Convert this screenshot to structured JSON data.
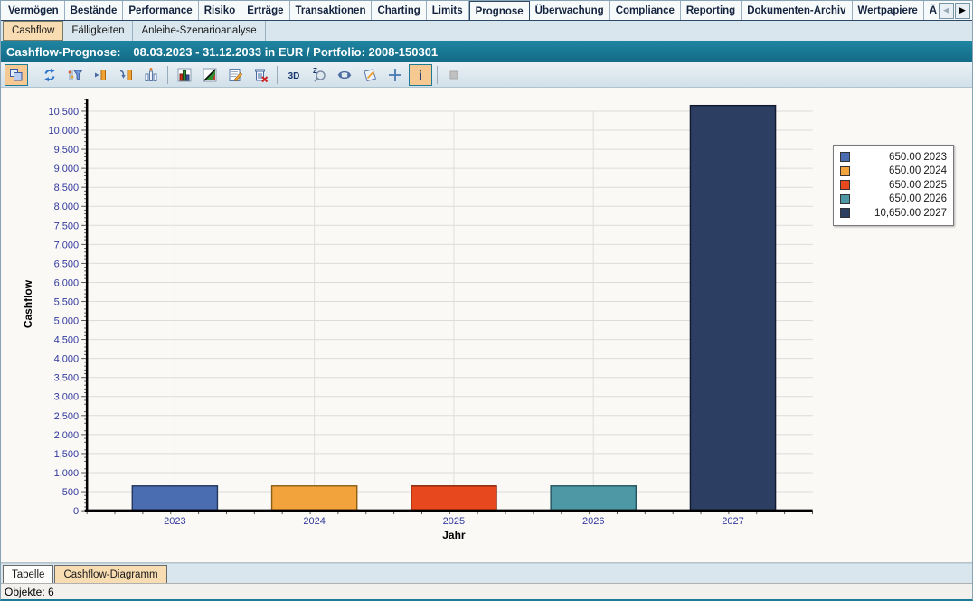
{
  "main_tabs": {
    "items": [
      {
        "label": "Vermögen"
      },
      {
        "label": "Bestände"
      },
      {
        "label": "Performance"
      },
      {
        "label": "Risiko"
      },
      {
        "label": "Erträge"
      },
      {
        "label": "Transaktionen"
      },
      {
        "label": "Charting"
      },
      {
        "label": "Limits"
      },
      {
        "label": "Prognose",
        "selected": true
      },
      {
        "label": "Überwachung"
      },
      {
        "label": "Compliance"
      },
      {
        "label": "Reporting"
      },
      {
        "label": "Dokumenten-Archiv"
      },
      {
        "label": "Wertpapiere"
      },
      {
        "label": "Än"
      }
    ],
    "scroll_left_enabled": false,
    "scroll_right_enabled": true
  },
  "sub_tabs": {
    "items": [
      {
        "label": "Cashflow",
        "selected": true
      },
      {
        "label": "Fälligkeiten"
      },
      {
        "label": "Anleihe-Szenarioanalyse"
      }
    ]
  },
  "title_bar": {
    "label": "Cashflow-Prognose:",
    "info": "08.03.2023 - 31.12.2033 in EUR / Portfolio: 2008-150301"
  },
  "toolbar": {
    "buttons": [
      {
        "icon": "fit-view",
        "selected": true
      },
      {
        "sep": true
      },
      {
        "icon": "refresh"
      },
      {
        "icon": "filter"
      },
      {
        "icon": "arrow-right-bar"
      },
      {
        "icon": "arrow-down-bar"
      },
      {
        "icon": "bar-stats"
      },
      {
        "sep": true
      },
      {
        "icon": "chart-gallery"
      },
      {
        "icon": "chart-style"
      },
      {
        "icon": "edit-note"
      },
      {
        "icon": "delete"
      },
      {
        "sep": true
      },
      {
        "icon": "three-d"
      },
      {
        "icon": "zoom"
      },
      {
        "icon": "rotate"
      },
      {
        "icon": "perspective"
      },
      {
        "icon": "crosshair"
      },
      {
        "icon": "info",
        "selected": true
      },
      {
        "sep": true
      },
      {
        "icon": "disabled-square",
        "disabled": true
      }
    ]
  },
  "chart_data": {
    "type": "bar",
    "title": "",
    "xlabel": "Jahr",
    "ylabel": "Cashflow",
    "categories": [
      "2023",
      "2024",
      "2025",
      "2026",
      "2027"
    ],
    "values": [
      650,
      650,
      650,
      650,
      10650
    ],
    "bar_colors": [
      "#4a6db1",
      "#f2a33c",
      "#e8481e",
      "#4e98a5",
      "#2c3f63"
    ],
    "bar_border_colors": [
      "#26365c",
      "#8a5f16",
      "#86270c",
      "#24555e",
      "#10192e"
    ],
    "ylim": [
      0,
      10500
    ],
    "ytick_step": 500,
    "grid": true,
    "legend_position": "right",
    "legend": [
      {
        "label": "650.00 2023",
        "color": "#4a6db1"
      },
      {
        "label": "650.00 2024",
        "color": "#f2a33c"
      },
      {
        "label": "650.00 2025",
        "color": "#e8481e"
      },
      {
        "label": "650.00 2026",
        "color": "#4e98a5"
      },
      {
        "label": "10,650.00 2027",
        "color": "#2c3f63"
      }
    ]
  },
  "bottom_tabs": {
    "items": [
      {
        "label": "Tabelle"
      },
      {
        "label": "Cashflow-Diagramm",
        "selected": true
      }
    ]
  },
  "status_bar": {
    "text": "Objekte: 6"
  },
  "colors": {
    "header_teal": "#177390",
    "selected_tab_orange": "#f8dcb2",
    "toolbar_selected_orange": "#f6c892",
    "tick_label_blue": "#333a9e"
  }
}
